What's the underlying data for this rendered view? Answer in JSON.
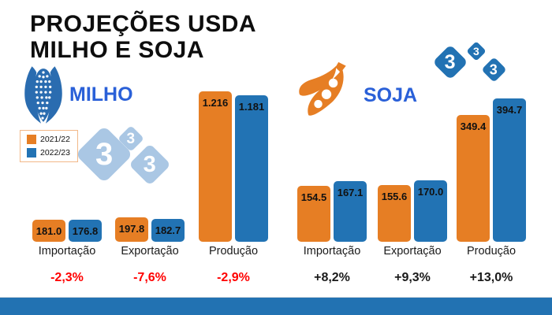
{
  "title": {
    "line1": "PROJEÇÕES USDA",
    "line2": "MILHO E SOJA"
  },
  "logo": {
    "digit": "3"
  },
  "colors": {
    "bar_2021_22": "#e67e24",
    "bar_2022_23": "#2273b4",
    "section_label_blue": "#2a60d8",
    "negative_change_red": "#ff0000",
    "positive_change_black": "#1a1a1a",
    "watermark_blue": "#aac7e4",
    "footer_bar_blue": "#2272b2"
  },
  "chart_data": {
    "type": "bar",
    "grid": false,
    "legend_position": "left-middle",
    "series": [
      {
        "name": "2021/22",
        "color": "#e67e24"
      },
      {
        "name": "2022/23",
        "color": "#2273b4"
      }
    ],
    "charts": [
      {
        "id": "milho",
        "label": "MILHO",
        "icon": "corn-icon",
        "categories": [
          "Importação",
          "Exportação",
          "Produção"
        ],
        "groups": [
          {
            "category": "Importação",
            "values": [
              181.0,
              176.8
            ],
            "labels": [
              "181.0",
              "176.8"
            ],
            "change": "-2,3%",
            "negative": true
          },
          {
            "category": "Exportação",
            "values": [
              197.8,
              182.7
            ],
            "labels": [
              "197.8",
              "182.7"
            ],
            "change": "-7,6%",
            "negative": true
          },
          {
            "category": "Produção",
            "values": [
              1216,
              1181
            ],
            "labels": [
              "1.216",
              "1.181"
            ],
            "change": "-2,9%",
            "negative": true
          }
        ]
      },
      {
        "id": "soja",
        "label": "SOJA",
        "icon": "soy-icon",
        "categories": [
          "Importação",
          "Exportação",
          "Produção"
        ],
        "groups": [
          {
            "category": "Importação",
            "values": [
              154.5,
              167.1
            ],
            "labels": [
              "154.5",
              "167.1"
            ],
            "change": "+8,2%",
            "negative": false
          },
          {
            "category": "Exportação",
            "values": [
              155.6,
              170.0
            ],
            "labels": [
              "155.6",
              "170.0"
            ],
            "change": "+9,3%",
            "negative": false
          },
          {
            "category": "Produção",
            "values": [
              349.4,
              394.7
            ],
            "labels": [
              "349.4",
              "394.7"
            ],
            "change": "+13,0%",
            "negative": false
          }
        ]
      }
    ]
  }
}
